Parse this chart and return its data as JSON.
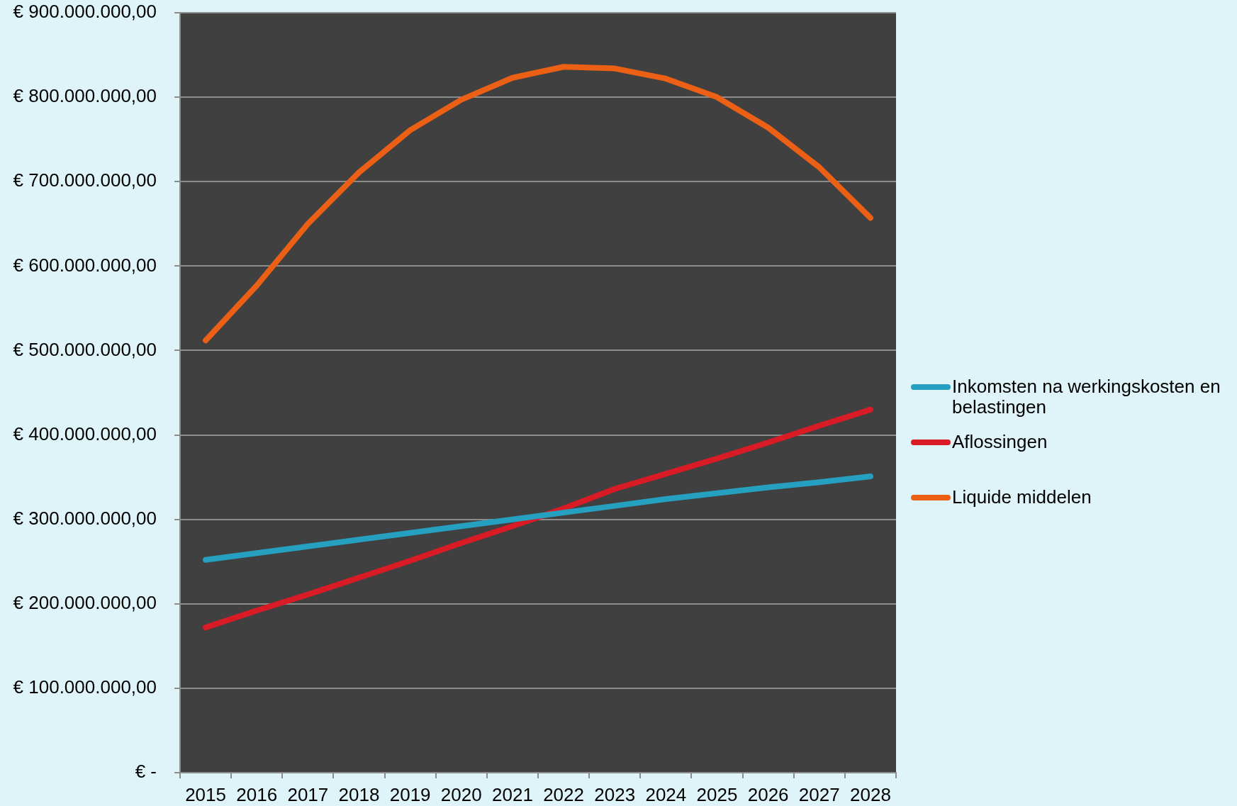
{
  "chart_data": {
    "type": "line",
    "categories": [
      "2015",
      "2016",
      "2017",
      "2018",
      "2019",
      "2020",
      "2021",
      "2022",
      "2023",
      "2024",
      "2025",
      "2026",
      "2027",
      "2028"
    ],
    "series": [
      {
        "name": "Inkomsten na werkingskosten en belastingen",
        "color": "#26a0c0",
        "values": [
          252000000,
          260000000,
          268000000,
          276000000,
          284000000,
          292000000,
          300000000,
          308000000,
          316000000,
          324000000,
          331000000,
          338000000,
          344000000,
          351000000
        ]
      },
      {
        "name": "Aflossingen",
        "color": "#d81b24",
        "values": [
          172000000,
          192000000,
          211000000,
          231000000,
          251000000,
          272000000,
          292000000,
          313000000,
          336000000,
          354000000,
          372000000,
          391000000,
          411000000,
          430000000
        ]
      },
      {
        "name": "Liquide middelen",
        "color": "#ec6015",
        "values": [
          512000000,
          577000000,
          650000000,
          711000000,
          761000000,
          797000000,
          823000000,
          836000000,
          834000000,
          822000000,
          800000000,
          764000000,
          717000000,
          657000000
        ]
      }
    ],
    "ylim": [
      0,
      900000000
    ],
    "yticks": [
      {
        "value": 0,
        "label": "€ -"
      },
      {
        "value": 100000000,
        "label": "€ 100.000.000,00"
      },
      {
        "value": 200000000,
        "label": "€ 200.000.000,00"
      },
      {
        "value": 300000000,
        "label": "€ 300.000.000,00"
      },
      {
        "value": 400000000,
        "label": "€ 400.000.000,00"
      },
      {
        "value": 500000000,
        "label": "€ 500.000.000,00"
      },
      {
        "value": 600000000,
        "label": "€ 600.000.000,00"
      },
      {
        "value": 700000000,
        "label": "€ 700.000.000,00"
      },
      {
        "value": 800000000,
        "label": "€ 800.000.000,00"
      },
      {
        "value": 900000000,
        "label": "€ 900.000.000,00"
      }
    ],
    "grid": "y",
    "legend": "right"
  }
}
